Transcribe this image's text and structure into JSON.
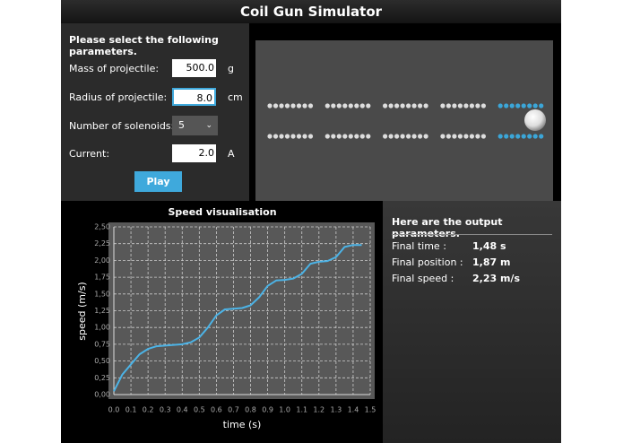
{
  "window": {
    "title": "Coil Gun Simulator"
  },
  "parameters": {
    "heading": "Please select the following parameters.",
    "fields": [
      {
        "label": "Mass of projectile:",
        "value": "500.0",
        "unit": "g"
      },
      {
        "label": "Radius of projectile:",
        "value": "8.0",
        "unit": "cm"
      },
      {
        "label": "Number of solenoids:",
        "value": "5"
      },
      {
        "label": "Current:",
        "value": "2.0",
        "unit": "A"
      }
    ],
    "button": "Play"
  },
  "output": {
    "heading": "Here are the output parameters.",
    "rows": [
      {
        "label": "Final time :",
        "value": "1,48 s"
      },
      {
        "label": "Final position :",
        "value": "1,87 m"
      },
      {
        "label": "Final speed :",
        "value": "2,23 m/s"
      }
    ]
  },
  "chart_data": {
    "type": "line",
    "title": "Speed visualisation",
    "x_label": "time (s)",
    "y_label": "speed (m/s)",
    "x": [
      0,
      0.05,
      0.1,
      0.15,
      0.2,
      0.25,
      0.3,
      0.35,
      0.4,
      0.45,
      0.5,
      0.55,
      0.6,
      0.65,
      0.7,
      0.75,
      0.8,
      0.85,
      0.9,
      0.95,
      1.0,
      1.05,
      1.1,
      1.15,
      1.2,
      1.25,
      1.3,
      1.35,
      1.4,
      1.45
    ],
    "values": [
      0.05,
      0.3,
      0.45,
      0.6,
      0.68,
      0.72,
      0.73,
      0.74,
      0.75,
      0.78,
      0.85,
      1.0,
      1.18,
      1.27,
      1.28,
      1.29,
      1.33,
      1.45,
      1.62,
      1.7,
      1.71,
      1.73,
      1.8,
      1.95,
      1.98,
      1.99,
      2.05,
      2.2,
      2.23,
      2.23
    ],
    "color": "#4cb3e6",
    "xlim": [
      0,
      1.5
    ],
    "ylim": [
      0,
      2.5
    ],
    "xticks": [
      {
        "value": 0,
        "label": "0.0"
      },
      0.1,
      0.2,
      0.3,
      0.4,
      0.5,
      0.6,
      0.7,
      0.8,
      0.9,
      {
        "value": 1,
        "label": "1.0"
      },
      1.1,
      1.2,
      1.3,
      1.4,
      1.5
    ],
    "yticks": [
      {
        "value": 0,
        "label": "0,00"
      },
      {
        "value": 0.25,
        "label": "0,25"
      },
      {
        "value": 0.5,
        "label": "0,50"
      },
      {
        "value": 0.75,
        "label": "0,75"
      },
      {
        "value": 1,
        "label": "1,00"
      },
      {
        "value": 1.25,
        "label": "1,25"
      },
      {
        "value": 1.5,
        "label": "1,50"
      },
      {
        "value": 1.75,
        "label": "1,75"
      },
      {
        "value": 2,
        "label": "2,00"
      },
      {
        "value": 2.25,
        "label": "2,25"
      },
      {
        "value": 2.5,
        "label": "2,50"
      }
    ],
    "grid": true
  }
}
